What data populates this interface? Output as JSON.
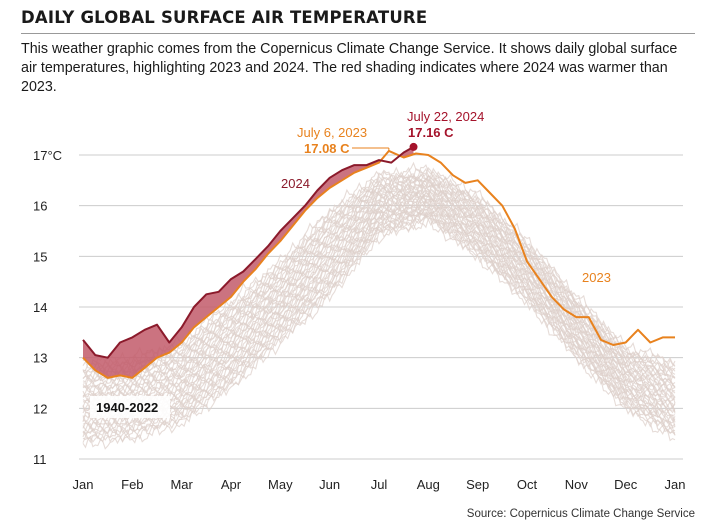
{
  "header": {
    "title": "DAILY GLOBAL SURFACE AIR TEMPERATURE",
    "subtitle": "This weather graphic comes from the Copernicus Climate Change Service. It shows daily global surface air temperatures, highlighting 2023 and 2024. The red shading indicates where 2024 was warmer than 2023."
  },
  "source": "Source: Copernicus Climate Change Service",
  "colors": {
    "y2023": "#e8821e",
    "y2024": "#8b1a2b",
    "shade2024": "#c25a6a",
    "historical": "#ddd0cb",
    "grid": "#cccccc"
  },
  "chart_data": {
    "type": "line",
    "ylim": [
      11,
      17.5
    ],
    "yticks": [
      11,
      12,
      13,
      14,
      15,
      16,
      17
    ],
    "ytick_labels": [
      "11",
      "12",
      "13",
      "14",
      "15",
      "16",
      "17°C"
    ],
    "x_months": [
      "Jan",
      "Feb",
      "Mar",
      "Apr",
      "May",
      "Jun",
      "Jul",
      "Aug",
      "Sep",
      "Oct",
      "Nov",
      "Dec",
      "Jan"
    ],
    "grid": true,
    "series": [
      {
        "name": "2023",
        "x_month": [
          0,
          0.25,
          0.5,
          0.75,
          1.0,
          1.25,
          1.5,
          1.75,
          2.0,
          2.25,
          2.5,
          2.75,
          3.0,
          3.25,
          3.5,
          3.75,
          4.0,
          4.25,
          4.5,
          4.75,
          5.0,
          5.25,
          5.5,
          5.75,
          6.0,
          6.2,
          6.5,
          6.75,
          7.0,
          7.25,
          7.5,
          7.75,
          8.0,
          8.25,
          8.5,
          8.75,
          9.0,
          9.25,
          9.5,
          9.75,
          10.0,
          10.25,
          10.5,
          10.75,
          11.0,
          11.25,
          11.5,
          11.75,
          12.0
        ],
        "values": [
          13.0,
          12.75,
          12.6,
          12.65,
          12.6,
          12.8,
          13.0,
          13.1,
          13.3,
          13.6,
          13.8,
          14.0,
          14.2,
          14.5,
          14.75,
          15.05,
          15.3,
          15.6,
          15.9,
          16.15,
          16.35,
          16.5,
          16.65,
          16.75,
          16.85,
          17.08,
          16.95,
          17.03,
          17.0,
          16.85,
          16.6,
          16.45,
          16.5,
          16.25,
          16.0,
          15.55,
          14.9,
          14.55,
          14.2,
          13.95,
          13.8,
          13.8,
          13.35,
          13.25,
          13.3,
          13.55,
          13.3,
          13.4,
          13.4
        ]
      },
      {
        "name": "2024",
        "x_month": [
          0,
          0.25,
          0.5,
          0.75,
          1.0,
          1.25,
          1.5,
          1.75,
          2.0,
          2.25,
          2.5,
          2.75,
          3.0,
          3.25,
          3.5,
          3.75,
          4.0,
          4.25,
          4.5,
          4.75,
          5.0,
          5.25,
          5.5,
          5.75,
          6.0,
          6.25,
          6.5,
          6.7
        ],
        "values": [
          13.35,
          13.05,
          13.0,
          13.3,
          13.4,
          13.55,
          13.65,
          13.3,
          13.6,
          14.0,
          14.25,
          14.3,
          14.55,
          14.7,
          14.95,
          15.2,
          15.5,
          15.75,
          16.0,
          16.3,
          16.55,
          16.7,
          16.8,
          16.8,
          16.9,
          16.85,
          17.05,
          17.16
        ]
      }
    ],
    "historical_band": {
      "name": "1940-2022",
      "x_month": [
        0,
        1,
        2,
        3,
        4,
        5,
        6,
        7,
        8,
        9,
        10,
        11,
        12
      ],
      "low": [
        11.3,
        11.4,
        11.7,
        12.4,
        13.3,
        14.2,
        15.4,
        15.7,
        15.0,
        14.1,
        13.0,
        12.0,
        11.4
      ],
      "high": [
        12.9,
        13.0,
        13.3,
        14.1,
        14.9,
        15.9,
        16.6,
        16.7,
        16.2,
        15.3,
        14.2,
        13.2,
        12.9
      ]
    },
    "annotations": [
      {
        "label": "July 6, 2023",
        "value_label": "17.08 C",
        "color": "#e8821e"
      },
      {
        "label": "July 22, 2024",
        "value_label": "17.16 C",
        "color": "#a5132b"
      },
      {
        "label": "2024",
        "color": "#8b1a2b"
      },
      {
        "label": "2023",
        "color": "#e8821e"
      },
      {
        "label": "1940-2022",
        "color": "#111111"
      }
    ]
  }
}
